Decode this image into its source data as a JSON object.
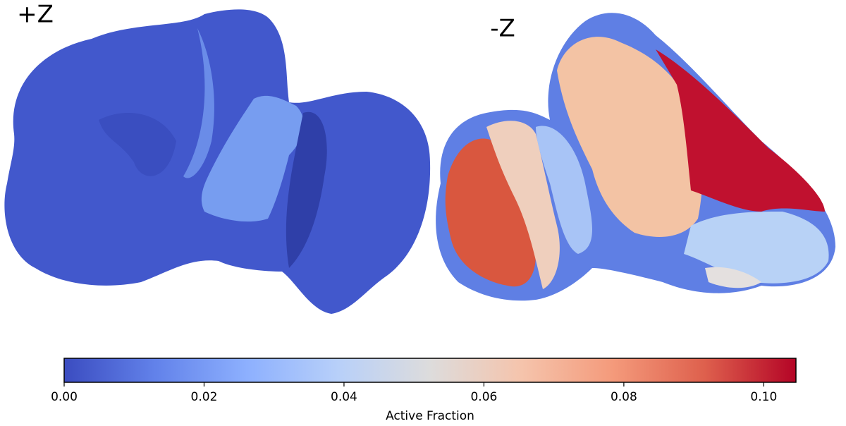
{
  "chart_data": {
    "type": "colorbar",
    "panels": [
      "+Z",
      "-Z"
    ],
    "xlabel": "Active Fraction",
    "xlim": [
      0,
      0.1046
    ],
    "xticks": [
      {
        "value": 0,
        "label": "0.00"
      },
      {
        "value": 0.02,
        "label": "0.02"
      },
      {
        "value": 0.04,
        "label": "0.04"
      },
      {
        "value": 0.06,
        "label": "0.06"
      },
      {
        "value": 0.08,
        "label": "0.08"
      },
      {
        "value": 0.1,
        "label": "0.10"
      }
    ],
    "cmap": [
      "#3b4cc0",
      "#6282ea",
      "#8db0fe",
      "#b8d0f9",
      "#dddcdc",
      "#f5c4ac",
      "#f49a7b",
      "#de604d",
      "#b40426"
    ]
  }
}
